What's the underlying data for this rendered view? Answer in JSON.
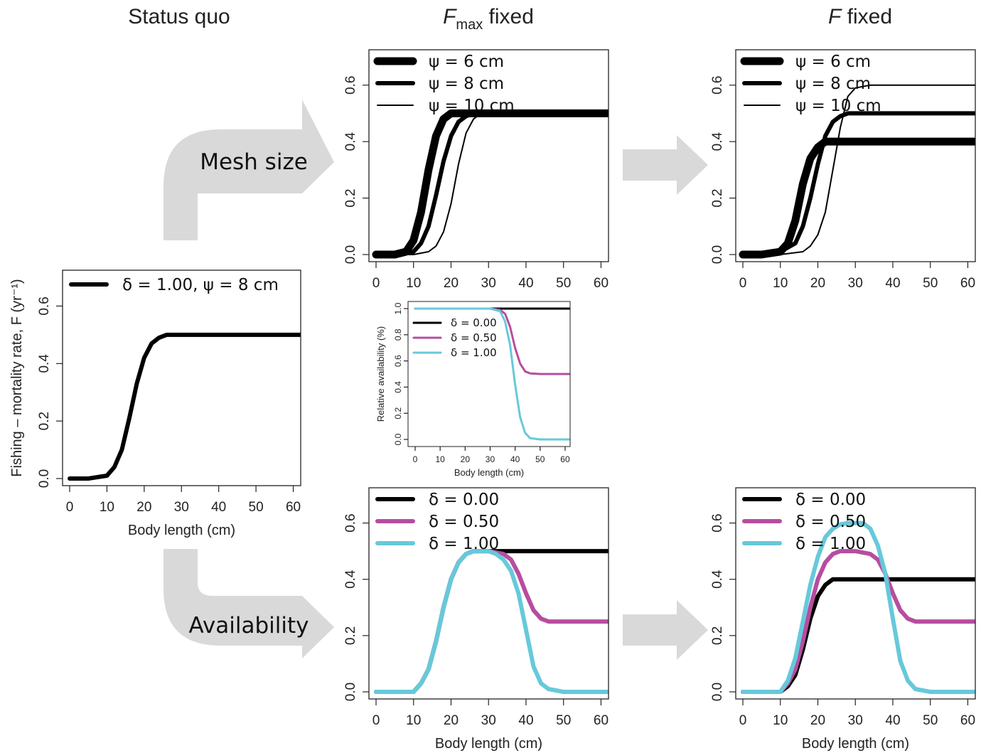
{
  "column_titles": {
    "status_quo": "Status quo",
    "fmax_fixed_F": "F",
    "fmax_fixed_sub": "max",
    "fmax_fixed_rest": " fixed",
    "f_fixed_F": "F",
    "f_fixed_rest": " fixed"
  },
  "arrows": {
    "mesh_size": "Mesh size",
    "availability": "Availability"
  },
  "colors": {
    "black": "#000000",
    "magenta": "#b74da0",
    "cyan": "#66c9da",
    "arrow_gray": "#d9d9d9"
  },
  "chart_data": [
    {
      "id": "status_quo",
      "type": "line",
      "xlabel": "Body length (cm)",
      "ylabel": "Fishing – mortality rate, F (yr⁻¹)",
      "xlim": [
        0,
        62
      ],
      "ylim": [
        0,
        0.7
      ],
      "xticks": [
        "0",
        "10",
        "20",
        "30",
        "40",
        "50",
        "60"
      ],
      "yticks": [
        "0.0",
        "0.2",
        "0.4",
        "0.6"
      ],
      "grid": false,
      "legend": "top-left",
      "series": [
        {
          "name": "δ = 1.00, ψ = 8 cm",
          "color": "#000000",
          "width": 6,
          "x": [
            0,
            5,
            10,
            12,
            14,
            16,
            18,
            20,
            22,
            24,
            26,
            30,
            40,
            50,
            62
          ],
          "y": [
            0,
            0,
            0.01,
            0.04,
            0.1,
            0.21,
            0.33,
            0.42,
            0.47,
            0.49,
            0.5,
            0.5,
            0.5,
            0.5,
            0.5
          ]
        }
      ]
    },
    {
      "id": "mesh_fmax",
      "type": "line",
      "xlabel": "",
      "xlim": [
        0,
        62
      ],
      "ylim": [
        0,
        0.7
      ],
      "xticks": [
        "0",
        "10",
        "20",
        "30",
        "40",
        "50",
        "60"
      ],
      "yticks": [
        "0.0",
        "0.2",
        "0.4",
        "0.6"
      ],
      "grid": false,
      "legend": "top-left",
      "series": [
        {
          "name": "ψ = 6 cm",
          "color": "#000000",
          "width": 11,
          "x": [
            0,
            5,
            8,
            10,
            12,
            14,
            16,
            18,
            20,
            22,
            25,
            30,
            40,
            50,
            62
          ],
          "y": [
            0,
            0,
            0.01,
            0.05,
            0.15,
            0.3,
            0.42,
            0.48,
            0.5,
            0.5,
            0.5,
            0.5,
            0.5,
            0.5,
            0.5
          ]
        },
        {
          "name": "ψ = 8 cm",
          "color": "#000000",
          "width": 6,
          "x": [
            0,
            5,
            10,
            12,
            14,
            16,
            18,
            20,
            22,
            24,
            26,
            30,
            40,
            50,
            62
          ],
          "y": [
            0,
            0,
            0.01,
            0.04,
            0.1,
            0.21,
            0.33,
            0.42,
            0.47,
            0.49,
            0.5,
            0.5,
            0.5,
            0.5,
            0.5
          ]
        },
        {
          "name": "ψ = 10 cm",
          "color": "#000000",
          "width": 2,
          "x": [
            0,
            5,
            10,
            14,
            16,
            18,
            20,
            22,
            24,
            26,
            28,
            32,
            40,
            50,
            62
          ],
          "y": [
            0,
            0,
            0,
            0.01,
            0.03,
            0.08,
            0.18,
            0.32,
            0.43,
            0.48,
            0.5,
            0.5,
            0.5,
            0.5,
            0.5
          ]
        }
      ]
    },
    {
      "id": "mesh_f",
      "type": "line",
      "xlabel": "",
      "xlim": [
        0,
        62
      ],
      "ylim": [
        0,
        0.7
      ],
      "xticks": [
        "0",
        "10",
        "20",
        "30",
        "40",
        "50",
        "60"
      ],
      "yticks": [
        "0.0",
        "0.2",
        "0.4",
        "0.6"
      ],
      "grid": false,
      "legend": "top-left",
      "series": [
        {
          "name": "ψ = 6 cm",
          "color": "#000000",
          "width": 11,
          "x": [
            0,
            5,
            10,
            12,
            14,
            16,
            18,
            20,
            22,
            24,
            28,
            40,
            50,
            62
          ],
          "y": [
            0,
            0,
            0.01,
            0.04,
            0.12,
            0.25,
            0.34,
            0.38,
            0.4,
            0.4,
            0.4,
            0.4,
            0.4,
            0.4
          ]
        },
        {
          "name": "ψ = 8 cm",
          "color": "#000000",
          "width": 6,
          "x": [
            0,
            5,
            10,
            14,
            16,
            18,
            20,
            22,
            24,
            26,
            28,
            32,
            40,
            50,
            62
          ],
          "y": [
            0,
            0,
            0.01,
            0.04,
            0.1,
            0.2,
            0.32,
            0.42,
            0.47,
            0.49,
            0.5,
            0.5,
            0.5,
            0.5,
            0.5
          ]
        },
        {
          "name": "ψ = 10 cm",
          "color": "#000000",
          "width": 2,
          "x": [
            0,
            5,
            10,
            16,
            18,
            20,
            22,
            24,
            26,
            28,
            30,
            34,
            40,
            50,
            62
          ],
          "y": [
            0,
            0,
            0,
            0.01,
            0.03,
            0.07,
            0.15,
            0.3,
            0.45,
            0.56,
            0.59,
            0.6,
            0.6,
            0.6,
            0.6
          ]
        }
      ]
    },
    {
      "id": "availability_inset",
      "type": "line",
      "xlabel": "Body length (cm)",
      "ylabel": "Relative availability (%)",
      "xlim": [
        0,
        62
      ],
      "ylim": [
        0,
        1
      ],
      "xticks": [
        "0",
        "10",
        "20",
        "30",
        "40",
        "50",
        "60"
      ],
      "yticks": [
        "0.0",
        "0.2",
        "0.4",
        "0.6",
        "0.8",
        "1.0"
      ],
      "grid": false,
      "legend": "left",
      "series": [
        {
          "name": "δ = 0.00",
          "color": "#000000",
          "width": 3,
          "x": [
            0,
            62
          ],
          "y": [
            1,
            1
          ]
        },
        {
          "name": "δ = 0.50",
          "color": "#b74da0",
          "width": 3,
          "x": [
            0,
            30,
            34,
            36,
            38,
            40,
            42,
            44,
            46,
            50,
            62
          ],
          "y": [
            1,
            1,
            0.99,
            0.96,
            0.86,
            0.7,
            0.58,
            0.52,
            0.505,
            0.5,
            0.5
          ]
        },
        {
          "name": "δ = 1.00",
          "color": "#66c9da",
          "width": 3,
          "x": [
            0,
            30,
            34,
            36,
            38,
            40,
            42,
            44,
            46,
            50,
            62
          ],
          "y": [
            1,
            1,
            0.98,
            0.9,
            0.72,
            0.42,
            0.17,
            0.05,
            0.01,
            0,
            0
          ]
        }
      ]
    },
    {
      "id": "avail_fmax",
      "type": "line",
      "xlabel": "Body length (cm)",
      "xlim": [
        0,
        62
      ],
      "ylim": [
        0,
        0.7
      ],
      "xticks": [
        "0",
        "10",
        "20",
        "30",
        "40",
        "50",
        "60"
      ],
      "yticks": [
        "0.0",
        "0.2",
        "0.4",
        "0.6"
      ],
      "grid": false,
      "legend": "top-left",
      "series": [
        {
          "name": "δ = 0.00",
          "color": "#000000",
          "width": 6,
          "x": [
            0,
            10,
            12,
            14,
            16,
            18,
            20,
            22,
            24,
            26,
            30,
            40,
            50,
            62
          ],
          "y": [
            0,
            0,
            0.03,
            0.08,
            0.18,
            0.3,
            0.4,
            0.46,
            0.49,
            0.5,
            0.5,
            0.5,
            0.5,
            0.5
          ]
        },
        {
          "name": "δ = 0.50",
          "color": "#b74da0",
          "width": 6,
          "x": [
            0,
            10,
            12,
            14,
            16,
            18,
            20,
            22,
            24,
            26,
            30,
            34,
            36,
            38,
            40,
            42,
            44,
            46,
            50,
            62
          ],
          "y": [
            0,
            0,
            0.03,
            0.08,
            0.18,
            0.3,
            0.4,
            0.46,
            0.49,
            0.5,
            0.5,
            0.49,
            0.47,
            0.42,
            0.35,
            0.29,
            0.26,
            0.25,
            0.25,
            0.25
          ]
        },
        {
          "name": "δ = 1.00",
          "color": "#66c9da",
          "width": 6,
          "x": [
            0,
            10,
            12,
            14,
            16,
            18,
            20,
            22,
            24,
            26,
            30,
            32,
            34,
            36,
            38,
            40,
            42,
            44,
            46,
            50,
            62
          ],
          "y": [
            0,
            0,
            0.03,
            0.08,
            0.18,
            0.3,
            0.4,
            0.46,
            0.49,
            0.5,
            0.5,
            0.49,
            0.47,
            0.43,
            0.35,
            0.22,
            0.09,
            0.03,
            0.01,
            0,
            0
          ]
        }
      ]
    },
    {
      "id": "avail_f",
      "type": "line",
      "xlabel": "Body length (cm)",
      "xlim": [
        0,
        62
      ],
      "ylim": [
        0,
        0.7
      ],
      "xticks": [
        "0",
        "10",
        "20",
        "30",
        "40",
        "50",
        "60"
      ],
      "yticks": [
        "0.0",
        "0.2",
        "0.4",
        "0.6"
      ],
      "grid": false,
      "legend": "top-left",
      "series": [
        {
          "name": "δ = 0.00",
          "color": "#000000",
          "width": 6,
          "x": [
            0,
            10,
            12,
            14,
            16,
            18,
            20,
            22,
            24,
            26,
            30,
            40,
            50,
            62
          ],
          "y": [
            0,
            0,
            0.02,
            0.06,
            0.15,
            0.26,
            0.34,
            0.38,
            0.4,
            0.4,
            0.4,
            0.4,
            0.4,
            0.4
          ]
        },
        {
          "name": "δ = 0.50",
          "color": "#b74da0",
          "width": 6,
          "x": [
            0,
            10,
            12,
            14,
            16,
            18,
            20,
            22,
            24,
            26,
            30,
            34,
            36,
            38,
            40,
            42,
            44,
            46,
            50,
            62
          ],
          "y": [
            0,
            0,
            0.03,
            0.08,
            0.18,
            0.3,
            0.4,
            0.46,
            0.49,
            0.5,
            0.5,
            0.49,
            0.47,
            0.42,
            0.35,
            0.29,
            0.26,
            0.25,
            0.25,
            0.25
          ]
        },
        {
          "name": "δ = 1.00",
          "color": "#66c9da",
          "width": 6,
          "x": [
            0,
            10,
            12,
            14,
            16,
            18,
            20,
            22,
            24,
            26,
            28,
            32,
            34,
            36,
            38,
            40,
            42,
            44,
            46,
            50,
            62
          ],
          "y": [
            0,
            0,
            0.04,
            0.12,
            0.25,
            0.38,
            0.48,
            0.55,
            0.58,
            0.595,
            0.6,
            0.6,
            0.58,
            0.52,
            0.42,
            0.26,
            0.11,
            0.04,
            0.01,
            0,
            0
          ]
        }
      ]
    }
  ]
}
